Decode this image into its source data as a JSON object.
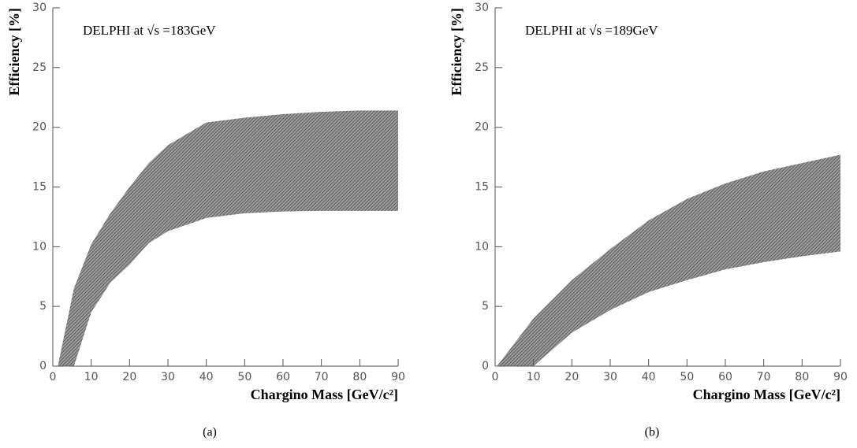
{
  "chart_data": [
    {
      "type": "band",
      "annotation": "DELPHI at √s =183GeV",
      "caption": "(a)",
      "x_label": "Chargino Mass [GeV/c²]",
      "y_label": "Efficiency [%]",
      "x": [
        1.3,
        5.5,
        10,
        15,
        20,
        25,
        30,
        40,
        50,
        60,
        70,
        80,
        90
      ],
      "series": [
        {
          "color": "#505050",
          "values": [
            0,
            6.5,
            10.2,
            12.8,
            15,
            17,
            18.5,
            20.4,
            20.8,
            21.1,
            21.3,
            21.4,
            21.4
          ]
        },
        {
          "color": "#505050",
          "values": [
            0,
            0,
            4.5,
            7,
            8.5,
            10.3,
            11.3,
            12.4,
            12.8,
            12.95,
            13,
            13,
            13
          ]
        }
      ],
      "xlim": [
        0,
        90
      ],
      "xticks": [
        0,
        10,
        20,
        30,
        40,
        50,
        60,
        70,
        80,
        90
      ],
      "ylim": [
        0,
        30
      ],
      "yticks": [
        0,
        5,
        10,
        15,
        20,
        25,
        30
      ]
    },
    {
      "type": "band",
      "annotation": "DELPHI at √s =189GeV",
      "caption": "(b)",
      "x_label": "Chargino Mass [GeV/c²]",
      "y_label": "Efficiency [%]",
      "x": [
        0.5,
        10,
        20,
        30,
        40,
        50,
        60,
        70,
        80,
        90
      ],
      "series": [
        {
          "color": "#505050",
          "values": [
            0,
            4,
            7.2,
            9.8,
            12.2,
            14,
            15.3,
            16.3,
            17,
            17.7
          ]
        },
        {
          "color": "#505050",
          "values": [
            0,
            0,
            2.8,
            4.7,
            6.2,
            7.2,
            8.1,
            8.7,
            9.2,
            9.6
          ]
        }
      ],
      "xlim": [
        0,
        90
      ],
      "xticks": [
        0,
        10,
        20,
        30,
        40,
        50,
        60,
        70,
        80,
        90
      ],
      "ylim": [
        0,
        30
      ],
      "yticks": [
        0,
        5,
        10,
        15,
        20,
        25,
        30
      ]
    }
  ]
}
